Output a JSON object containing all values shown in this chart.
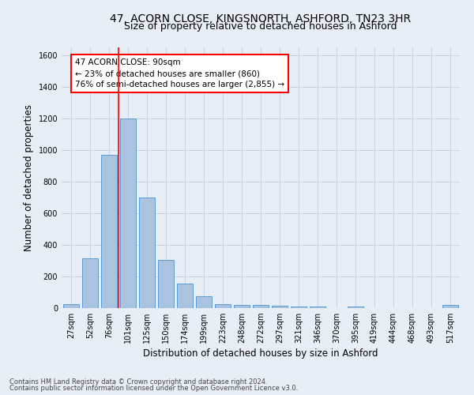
{
  "title": "47, ACORN CLOSE, KINGSNORTH, ASHFORD, TN23 3HR",
  "subtitle": "Size of property relative to detached houses in Ashford",
  "xlabel": "Distribution of detached houses by size in Ashford",
  "ylabel": "Number of detached properties",
  "footnote1": "Contains HM Land Registry data © Crown copyright and database right 2024.",
  "footnote2": "Contains public sector information licensed under the Open Government Licence v3.0.",
  "categories": [
    "27sqm",
    "52sqm",
    "76sqm",
    "101sqm",
    "125sqm",
    "150sqm",
    "174sqm",
    "199sqm",
    "223sqm",
    "248sqm",
    "272sqm",
    "297sqm",
    "321sqm",
    "346sqm",
    "370sqm",
    "395sqm",
    "419sqm",
    "444sqm",
    "468sqm",
    "493sqm",
    "517sqm"
  ],
  "values": [
    25,
    315,
    970,
    1200,
    700,
    305,
    155,
    75,
    25,
    18,
    18,
    15,
    10,
    10,
    0,
    12,
    0,
    0,
    0,
    0,
    18
  ],
  "bar_color": "#aac4e0",
  "bar_edge_color": "#5b9bd5",
  "grid_color": "#c8d4e3",
  "background_color": "#e8eef5",
  "ann_line1": "47 ACORN CLOSE: 90sqm",
  "ann_line2": "← 23% of detached houses are smaller (860)",
  "ann_line3": "76% of semi-detached houses are larger (2,855) →",
  "vline_x": 2.5,
  "ylim": [
    0,
    1650
  ],
  "yticks": [
    0,
    200,
    400,
    600,
    800,
    1000,
    1200,
    1400,
    1600
  ],
  "title_fontsize": 10,
  "subtitle_fontsize": 9,
  "axis_label_fontsize": 8.5,
  "tick_fontsize": 7,
  "annotation_fontsize": 7.5,
  "footnote_fontsize": 6
}
